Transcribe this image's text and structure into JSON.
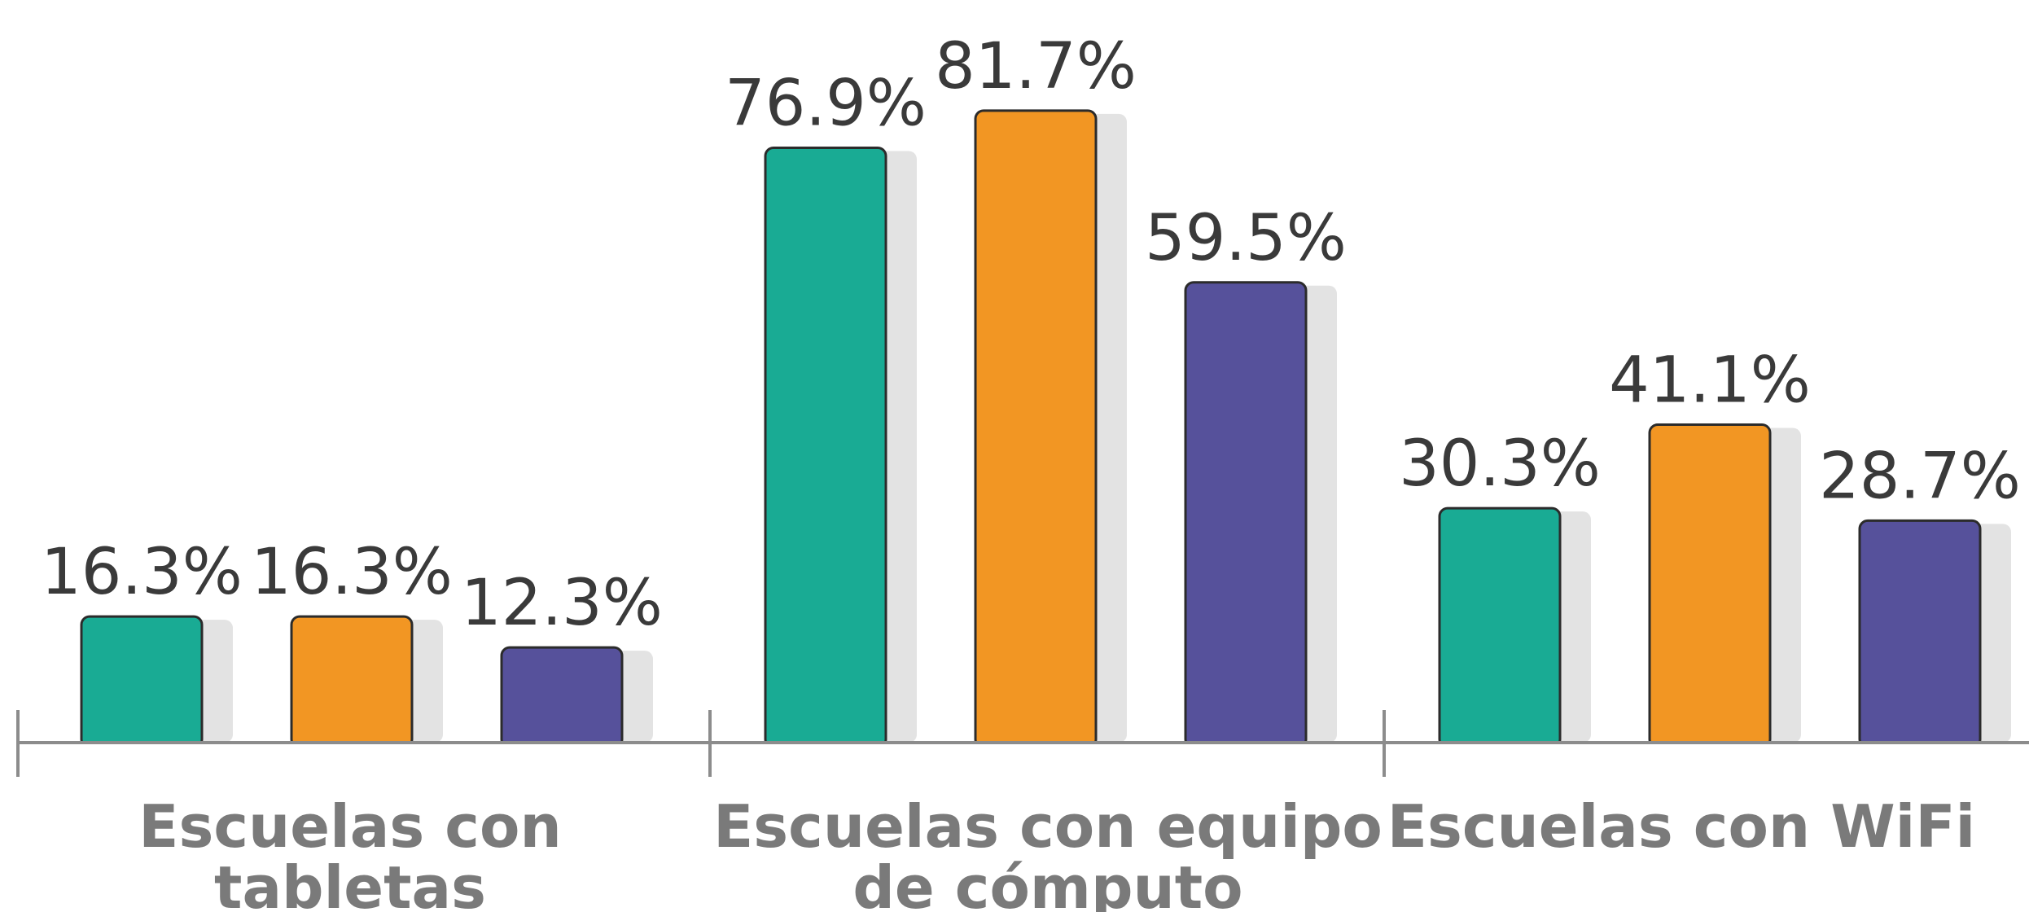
{
  "chart_data": {
    "type": "bar",
    "categories": [
      [
        "Escuelas con",
        "tabletas"
      ],
      [
        "Escuelas con equipo",
        "de cómputo"
      ],
      [
        "Escuelas con WiFi"
      ]
    ],
    "series": [
      {
        "color": "#19ab94",
        "values": [
          16.3,
          76.9,
          30.3
        ],
        "labels": [
          "16.3%",
          "76.9%",
          "30.3%"
        ]
      },
      {
        "color": "#f29623",
        "values": [
          16.3,
          81.7,
          41.1
        ],
        "labels": [
          "16.3%",
          "81.7%",
          "41.1%"
        ]
      },
      {
        "color": "#56519b",
        "values": [
          12.3,
          59.5,
          28.7
        ],
        "labels": [
          "12.3%",
          "59.5%",
          "28.7%"
        ]
      }
    ],
    "ylim": [
      0,
      85
    ],
    "grid": false,
    "legend": "none",
    "colors": {
      "shadow": "#e3e3e3",
      "axis": "#8c8c8c",
      "value_text": "#3a3a3a",
      "category_text": "#7a7a7a"
    }
  }
}
